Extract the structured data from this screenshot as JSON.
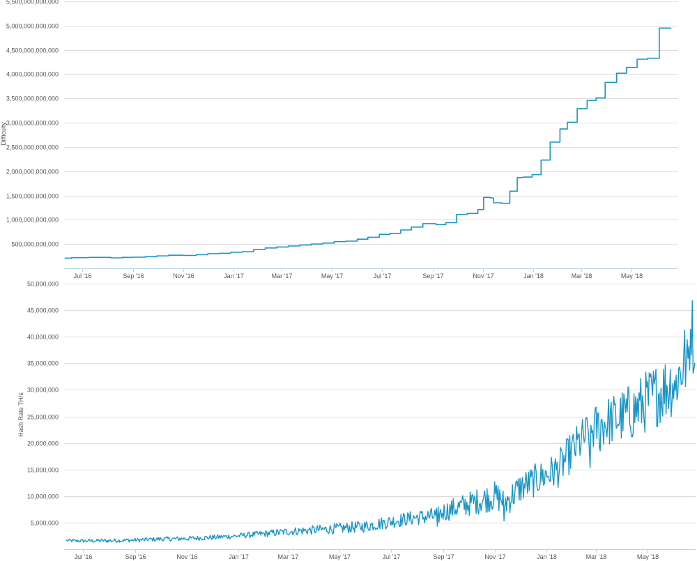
{
  "chart_data": [
    {
      "type": "line",
      "ylabel": "Difficulty",
      "xlim": [
        "2016-06-09",
        "2018-06-27"
      ],
      "ylim": [
        0,
        5500000000000
      ],
      "y_ticks": [
        {
          "value": 500000000000,
          "label": "500,000,000,000"
        },
        {
          "value": 1000000000000,
          "label": "1,000,000,000,000"
        },
        {
          "value": 1500000000000,
          "label": "1,500,000,000,000"
        },
        {
          "value": 2000000000000,
          "label": "2,000,000,000,000"
        },
        {
          "value": 2500000000000,
          "label": "2,500,000,000,000"
        },
        {
          "value": 3000000000000,
          "label": "3,000,000,000,000"
        },
        {
          "value": 3500000000000,
          "label": "3,500,000,000,000"
        },
        {
          "value": 4000000000000,
          "label": "4,000,000,000,000"
        },
        {
          "value": 4500000000000,
          "label": "4,500,000,000,000"
        },
        {
          "value": 5000000000000,
          "label": "5,000,000,000,000"
        },
        {
          "value": 5500000000000,
          "label": "5,500,000,000,000"
        }
      ],
      "x_ticks": [
        {
          "date": "2016-07-01",
          "label": "Jul '16"
        },
        {
          "date": "2016-09-01",
          "label": "Sep '16"
        },
        {
          "date": "2016-11-01",
          "label": "Nov '16"
        },
        {
          "date": "2017-01-01",
          "label": "Jan '17"
        },
        {
          "date": "2017-03-01",
          "label": "Mar '17"
        },
        {
          "date": "2017-05-01",
          "label": "May '17"
        },
        {
          "date": "2017-07-01",
          "label": "Jul '17"
        },
        {
          "date": "2017-09-01",
          "label": "Sep '17"
        },
        {
          "date": "2017-11-01",
          "label": "Nov '17"
        },
        {
          "date": "2018-01-01",
          "label": "Jan '18"
        },
        {
          "date": "2018-03-01",
          "label": "Mar '18"
        },
        {
          "date": "2018-05-01",
          "label": "May '18"
        }
      ],
      "grid": true,
      "color": "#1a95c6",
      "series_style": "step",
      "series": [
        {
          "x": [
            "2016-06-10",
            "2016-06-18",
            "2016-07-09",
            "2016-08-05",
            "2016-08-19",
            "2016-09-01",
            "2016-09-16",
            "2016-09-30",
            "2016-10-14",
            "2016-11-01",
            "2016-11-17",
            "2016-12-01",
            "2016-12-15",
            "2016-12-29",
            "2017-01-12",
            "2017-01-26",
            "2017-02-09",
            "2017-02-23",
            "2017-03-09",
            "2017-03-23",
            "2017-04-06",
            "2017-04-20",
            "2017-05-04",
            "2017-05-18",
            "2017-06-01",
            "2017-06-14",
            "2017-06-28",
            "2017-07-11",
            "2017-07-24",
            "2017-08-06",
            "2017-08-20",
            "2017-09-05",
            "2017-09-17",
            "2017-09-30",
            "2017-10-13",
            "2017-10-26",
            "2017-11-02",
            "2017-11-10",
            "2017-11-14",
            "2017-11-24",
            "2017-12-04",
            "2017-12-13",
            "2017-12-20",
            "2017-12-31",
            "2018-01-11",
            "2018-01-22",
            "2018-02-03",
            "2018-02-12",
            "2018-02-24",
            "2018-03-08",
            "2018-03-19",
            "2018-03-30",
            "2018-04-13",
            "2018-04-25",
            "2018-05-08",
            "2018-05-21",
            "2018-06-04",
            "2018-06-16",
            "2018-06-18"
          ],
          "y": [
            210000000000,
            220000000000,
            225000000000,
            215000000000,
            225000000000,
            230000000000,
            240000000000,
            255000000000,
            270000000000,
            265000000000,
            280000000000,
            300000000000,
            310000000000,
            330000000000,
            340000000000,
            390000000000,
            420000000000,
            440000000000,
            460000000000,
            480000000000,
            500000000000,
            520000000000,
            550000000000,
            560000000000,
            600000000000,
            640000000000,
            700000000000,
            720000000000,
            790000000000,
            850000000000,
            920000000000,
            900000000000,
            940000000000,
            1110000000000,
            1130000000000,
            1210000000000,
            1460000000000,
            1450000000000,
            1350000000000,
            1340000000000,
            1590000000000,
            1870000000000,
            1880000000000,
            1930000000000,
            2230000000000,
            2600000000000,
            2870000000000,
            3010000000000,
            3290000000000,
            3460000000000,
            3510000000000,
            3830000000000,
            4020000000000,
            4140000000000,
            4310000000000,
            4330000000000,
            4950000000000,
            4950000000000,
            4950000000000
          ]
        }
      ]
    },
    {
      "type": "line",
      "ylabel": "Hash Rate TH/s",
      "xlim": [
        "2016-06-09",
        "2018-06-27"
      ],
      "ylim": [
        0,
        50000000
      ],
      "y_ticks": [
        {
          "value": 5000000,
          "label": "5,000,000"
        },
        {
          "value": 10000000,
          "label": "10,000,000"
        },
        {
          "value": 15000000,
          "label": "15,000,000"
        },
        {
          "value": 20000000,
          "label": "20,000,000"
        },
        {
          "value": 25000000,
          "label": "25,000,000"
        },
        {
          "value": 30000000,
          "label": "30,000,000"
        },
        {
          "value": 35000000,
          "label": "35,000,000"
        },
        {
          "value": 40000000,
          "label": "40,000,000"
        },
        {
          "value": 45000000,
          "label": "45,000,000"
        },
        {
          "value": 50000000,
          "label": "50,000,000"
        }
      ],
      "x_ticks": [
        {
          "date": "2016-07-01",
          "label": "Jul '16"
        },
        {
          "date": "2016-09-01",
          "label": "Sep '16"
        },
        {
          "date": "2016-11-01",
          "label": "Nov '16"
        },
        {
          "date": "2017-01-01",
          "label": "Jan '17"
        },
        {
          "date": "2017-03-01",
          "label": "Mar '17"
        },
        {
          "date": "2017-05-01",
          "label": "May '17"
        },
        {
          "date": "2017-07-01",
          "label": "Jul '17"
        },
        {
          "date": "2017-09-01",
          "label": "Sep '17"
        },
        {
          "date": "2017-11-01",
          "label": "Nov '17"
        },
        {
          "date": "2018-01-01",
          "label": "Jan '18"
        },
        {
          "date": "2018-03-01",
          "label": "Mar '18"
        },
        {
          "date": "2018-05-01",
          "label": "May '18"
        }
      ],
      "grid": true,
      "color": "#1a95c6",
      "series_style": "noisy-line",
      "series": [
        {
          "trend": {
            "x": [
              "2016-06-12",
              "2016-07-01",
              "2016-08-01",
              "2016-09-01",
              "2016-10-01",
              "2016-11-01",
              "2016-12-01",
              "2017-01-01",
              "2017-02-01",
              "2017-03-01",
              "2017-04-01",
              "2017-05-01",
              "2017-06-01",
              "2017-07-01",
              "2017-08-01",
              "2017-08-25",
              "2017-09-01",
              "2017-10-01",
              "2017-11-01",
              "2017-11-15",
              "2017-12-01",
              "2018-01-01",
              "2018-01-15",
              "2018-02-01",
              "2018-02-15",
              "2018-03-01",
              "2018-03-15",
              "2018-04-01",
              "2018-04-15",
              "2018-05-01",
              "2018-05-15",
              "2018-06-01",
              "2018-06-10",
              "2018-06-14",
              "2018-06-17",
              "2018-06-22",
              "2018-06-26"
            ],
            "y": [
              1600000,
              1550000,
              1600000,
              1700000,
              1900000,
              2000000,
              2200000,
              2500000,
              2900000,
              3300000,
              3600000,
              3900000,
              4300000,
              5200000,
              6000000,
              6200000,
              7000000,
              8500000,
              10000000,
              9000000,
              11500000,
              14000000,
              15000000,
              18500000,
              21000000,
              23000000,
              24000000,
              25000000,
              26000000,
              28000000,
              29500000,
              31500000,
              33500000,
              36000000,
              33500000,
              43000000,
              35000000
            ]
          },
          "spread": {
            "x": [
              "2016-06-12",
              "2017-01-01",
              "2017-08-01",
              "2017-11-01",
              "2018-01-01",
              "2018-03-01",
              "2018-05-01",
              "2018-06-26"
            ],
            "y": [
              300000,
              500000,
              1400000,
              2800000,
              3200000,
              4500000,
              6000000,
              7000000
            ]
          },
          "dips": [
            {
              "x": "2017-08-25",
              "y": 4300000
            },
            {
              "x": "2017-11-12",
              "y": 5300000
            },
            {
              "x": "2018-02-22",
              "y": 15300000
            },
            {
              "x": "2018-03-06",
              "y": 18500000
            },
            {
              "x": "2018-04-10",
              "y": 23500000
            },
            {
              "x": "2018-06-03",
              "y": 29800000
            }
          ]
        }
      ]
    }
  ]
}
